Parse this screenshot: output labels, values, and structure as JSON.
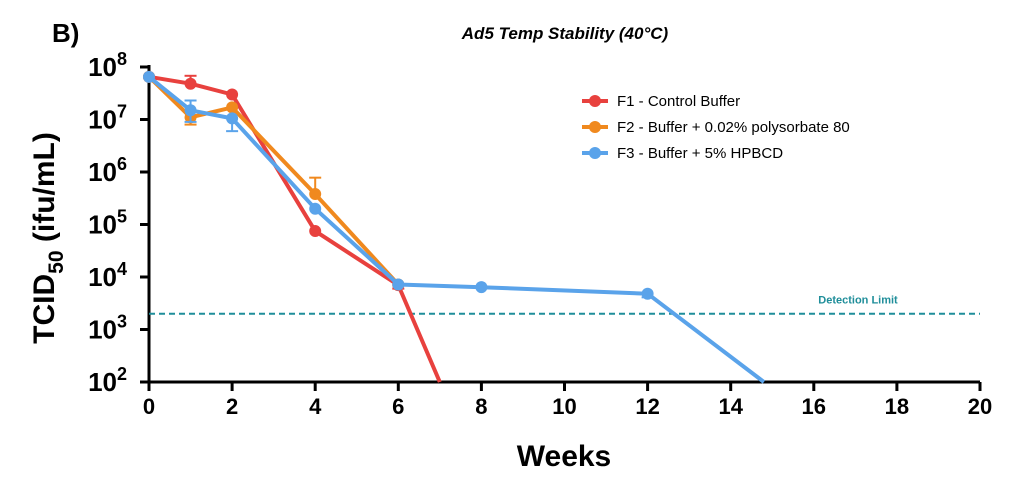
{
  "panel_label": "B)",
  "chart_data": {
    "type": "line",
    "title": "Ad5 Temp Stability (40°C)",
    "xlabel": "Weeks",
    "ylabel_base": "TCID",
    "ylabel_sub": "50",
    "ylabel_unit": "(ifu/mL)",
    "x_ticks": [
      0,
      2,
      4,
      6,
      8,
      10,
      12,
      14,
      16,
      18,
      20
    ],
    "xlim": [
      0,
      20
    ],
    "y_scale": "log10",
    "ylim": [
      100,
      100000000
    ],
    "y_tick_exponents": [
      2,
      3,
      4,
      5,
      6,
      7,
      8
    ],
    "y_tick_base": "10",
    "grid": false,
    "legend_position": "top-right",
    "series": [
      {
        "name": "F1 - Control Buffer",
        "color": "#e8413e",
        "points": [
          {
            "x": 0,
            "y": 65000000,
            "err_up": 0,
            "err_down": 0
          },
          {
            "x": 1,
            "y": 48000000,
            "err_up": 20000000,
            "err_down": 0
          },
          {
            "x": 2,
            "y": 30000000,
            "err_up": 0,
            "err_down": 0
          },
          {
            "x": 4,
            "y": 75000,
            "err_up": 0,
            "err_down": 0
          },
          {
            "x": 6,
            "y": 7000,
            "err_up": 0,
            "err_down": 1000
          }
        ],
        "tail": {
          "x": 7,
          "y": 100
        }
      },
      {
        "name": "F2 - Buffer + 0.02% polysorbate 80",
        "color": "#f0891e",
        "points": [
          {
            "x": 0,
            "y": 65000000,
            "err_up": 0,
            "err_down": 0
          },
          {
            "x": 1,
            "y": 11000000,
            "err_up": 0,
            "err_down": 3000000
          },
          {
            "x": 2,
            "y": 17000000,
            "err_up": 0,
            "err_down": 0
          },
          {
            "x": 4,
            "y": 380000,
            "err_up": 400000,
            "err_down": 0
          },
          {
            "x": 6,
            "y": 7200,
            "err_up": 0,
            "err_down": 0
          }
        ]
      },
      {
        "name": "F3 - Buffer + 5% HPBCD",
        "color": "#5aa3ea",
        "points": [
          {
            "x": 0,
            "y": 65000000,
            "err_up": 0,
            "err_down": 0
          },
          {
            "x": 1,
            "y": 15000000,
            "err_up": 8000000,
            "err_down": 6000000
          },
          {
            "x": 2,
            "y": 10500000,
            "err_up": 0,
            "err_down": 4500000
          },
          {
            "x": 4,
            "y": 200000,
            "err_up": 0,
            "err_down": 0
          },
          {
            "x": 6,
            "y": 7200,
            "err_up": 0,
            "err_down": 0
          },
          {
            "x": 8,
            "y": 6400,
            "err_up": 0,
            "err_down": 0
          },
          {
            "x": 12,
            "y": 4800,
            "err_up": 0,
            "err_down": 700
          }
        ],
        "tail": {
          "x": 14.8,
          "y": 100
        }
      }
    ],
    "reference_line": {
      "label": "Detection Limit",
      "y": 2000,
      "color": "#1f8e9a"
    }
  }
}
